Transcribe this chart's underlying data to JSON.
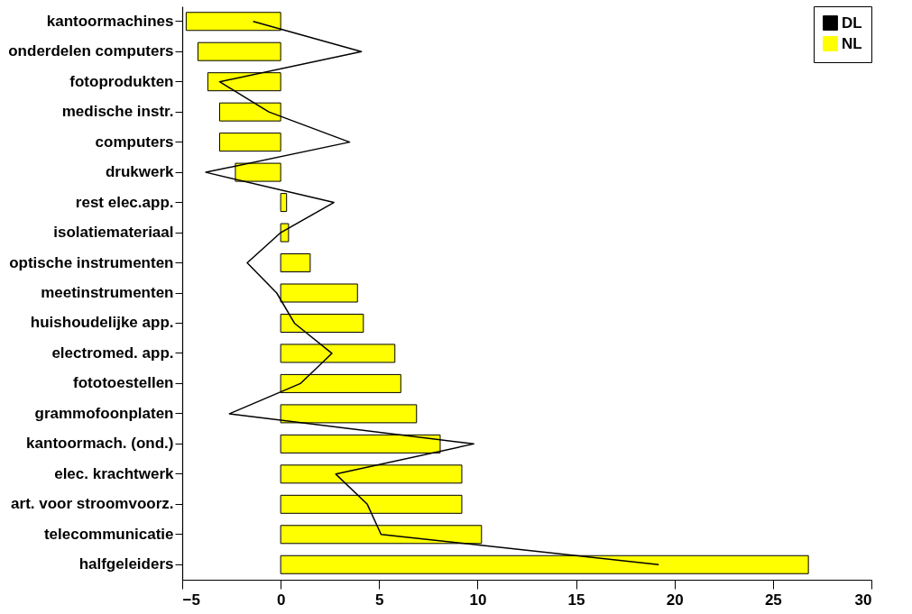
{
  "chart_data": {
    "type": "bar",
    "orientation": "horizontal",
    "categories": [
      "kantoormachines",
      "onderdelen computers",
      "fotoprodukten",
      "medische instr.",
      "computers",
      "drukwerk",
      "rest elec.app.",
      "isolatiemateriaal",
      "optische instrumenten",
      "meetinstrumenten",
      "huishoudelijke app.",
      "electromed. app.",
      "fototoestellen",
      "grammofoonplaten",
      "kantoormach. (ond.)",
      "elec. krachtwerk",
      "art. voor stroomvoorz.",
      "telecommunicatie",
      "halfgeleiders"
    ],
    "series": [
      {
        "name": "DL",
        "type": "line",
        "color": "#000000",
        "values": [
          -1.4,
          4.1,
          -3.1,
          -0.6,
          3.5,
          -3.8,
          2.7,
          0.0,
          -1.7,
          -0.2,
          0.7,
          2.6,
          1.0,
          -2.6,
          9.8,
          2.8,
          4.4,
          5.1,
          19.2
        ]
      },
      {
        "name": "NL",
        "color": "#ffff00",
        "values": [
          -4.8,
          -4.2,
          -3.7,
          -3.1,
          -3.1,
          -2.3,
          0.3,
          0.4,
          1.5,
          3.9,
          4.2,
          5.8,
          6.1,
          6.9,
          8.1,
          9.2,
          9.2,
          10.2,
          26.8
        ]
      }
    ],
    "xlim": [
      -5,
      30
    ],
    "xticks": [
      -5,
      0,
      5,
      10,
      15,
      20,
      25,
      30
    ],
    "legend": "top right",
    "grid": false
  }
}
